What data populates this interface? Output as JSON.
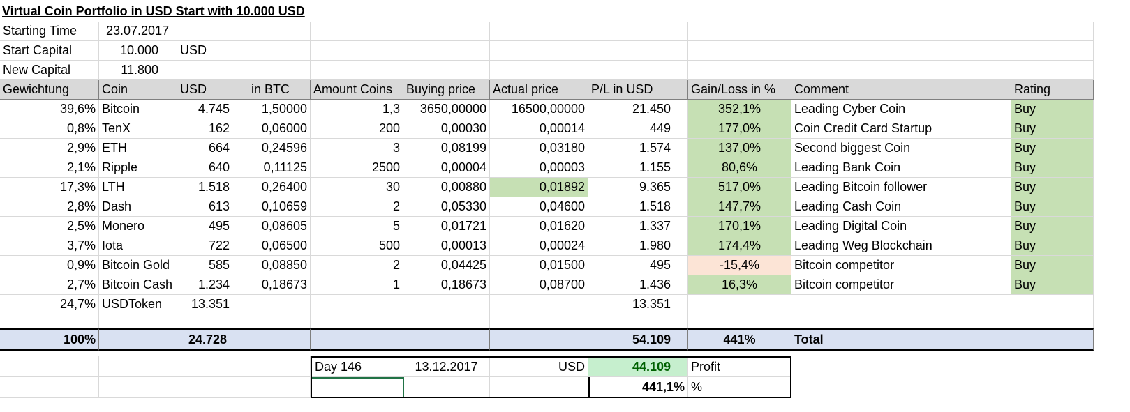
{
  "title": "Virtual Coin Portfolio in USD Start with 10.000 USD",
  "info": {
    "starting_time_label": "Starting Time",
    "starting_time_value": "23.07.2017",
    "start_capital_label": "Start Capital",
    "start_capital_value": "10.000",
    "start_capital_unit": "USD",
    "new_capital_label": "New Capital",
    "new_capital_value": "11.800"
  },
  "headers": [
    "Gewichtung",
    "Coin",
    "USD",
    "in BTC",
    "Amount Coins",
    "Buying price",
    "Actual price",
    "P/L in USD",
    "Gain/Loss in %",
    "Comment",
    "Rating"
  ],
  "rows": [
    {
      "weight": "39,6%",
      "coin": "Bitcoin",
      "usd": "4.745",
      "btc": "1,50000",
      "amount": "1,3",
      "buy": "3650,00000",
      "actual": "16500,00000",
      "pl": "21.450",
      "gain": "352,1%",
      "comment": "Leading Cyber Coin",
      "rating": "Buy",
      "gain_color": "green",
      "actual_color": ""
    },
    {
      "weight": "0,8%",
      "coin": "TenX",
      "usd": "162",
      "btc": "0,06000",
      "amount": "200",
      "buy": "0,00030",
      "actual": "0,00014",
      "pl": "449",
      "gain": "177,0%",
      "comment": "Coin Credit Card Startup",
      "rating": "Buy",
      "gain_color": "green",
      "actual_color": ""
    },
    {
      "weight": "2,9%",
      "coin": "ETH",
      "usd": "664",
      "btc": "0,24596",
      "amount": "3",
      "buy": "0,08199",
      "actual": "0,03180",
      "pl": "1.574",
      "gain": "137,0%",
      "comment": "Second biggest Coin",
      "rating": "Buy",
      "gain_color": "green",
      "actual_color": ""
    },
    {
      "weight": "2,1%",
      "coin": "Ripple",
      "usd": "640",
      "btc": "0,11125",
      "amount": "2500",
      "buy": "0,00004",
      "actual": "0,00003",
      "pl": "1.155",
      "gain": "80,6%",
      "comment": "Leading Bank Coin",
      "rating": "Buy",
      "gain_color": "green",
      "actual_color": ""
    },
    {
      "weight": "17,3%",
      "coin": "LTH",
      "usd": "1.518",
      "btc": "0,26400",
      "amount": "30",
      "buy": "0,00880",
      "actual": "0,01892",
      "pl": "9.365",
      "gain": "517,0%",
      "comment": "Leading Bitcoin follower",
      "rating": "Buy",
      "gain_color": "green",
      "actual_color": "green"
    },
    {
      "weight": "2,8%",
      "coin": "Dash",
      "usd": "613",
      "btc": "0,10659",
      "amount": "2",
      "buy": "0,05330",
      "actual": "0,04600",
      "pl": "1.518",
      "gain": "147,7%",
      "comment": "Leading Cash Coin",
      "rating": "Buy",
      "gain_color": "green",
      "actual_color": ""
    },
    {
      "weight": "2,5%",
      "coin": "Monero",
      "usd": "495",
      "btc": "0,08605",
      "amount": "5",
      "buy": "0,01721",
      "actual": "0,01620",
      "pl": "1.337",
      "gain": "170,1%",
      "comment": "Leading Digital Coin",
      "rating": "Buy",
      "gain_color": "green",
      "actual_color": ""
    },
    {
      "weight": "3,7%",
      "coin": "Iota",
      "usd": "722",
      "btc": "0,06500",
      "amount": "500",
      "buy": "0,00013",
      "actual": "0,00024",
      "pl": "1.980",
      "gain": "174,4%",
      "comment": "Leading Weg Blockchain",
      "rating": "Buy",
      "gain_color": "green",
      "actual_color": ""
    },
    {
      "weight": "0,9%",
      "coin": "Bitcoin Gold",
      "usd": "585",
      "btc": "0,08850",
      "amount": "2",
      "buy": "0,04425",
      "actual": "0,01500",
      "pl": "495",
      "gain": "-15,4%",
      "comment": "Bitcoin competitor",
      "rating": "Buy",
      "gain_color": "red",
      "actual_color": ""
    },
    {
      "weight": "2,7%",
      "coin": "Bitcoin Cash",
      "usd": "1.234",
      "btc": "0,18673",
      "amount": "1",
      "buy": "0,18673",
      "actual": "0,08700",
      "pl": "1.436",
      "gain": "16,3%",
      "comment": "Bitcoin competitor",
      "rating": "Buy",
      "gain_color": "green",
      "actual_color": ""
    },
    {
      "weight": "24,7%",
      "coin": "USDToken",
      "usd": "13.351",
      "btc": "",
      "amount": "",
      "buy": "",
      "actual": "",
      "pl": "13.351",
      "gain": "",
      "comment": "",
      "rating": "",
      "gain_color": "",
      "actual_color": ""
    }
  ],
  "totals": {
    "weight": "100%",
    "usd": "24.728",
    "pl": "54.109",
    "gain": "441%",
    "label": "Total"
  },
  "summary": {
    "day_label": "Day 146",
    "date": "13.12.2017",
    "currency": "USD",
    "profit_value": "44.109",
    "profit_label": "Profit",
    "percent_value": "441,1%",
    "percent_sign": "%"
  },
  "colors": {
    "gain_green": "#c6e0b4",
    "loss_red": "#fce4d6",
    "header_gray": "#d9d9d9",
    "total_blue": "#d9e1f2",
    "profit_green": "#c6efce"
  }
}
